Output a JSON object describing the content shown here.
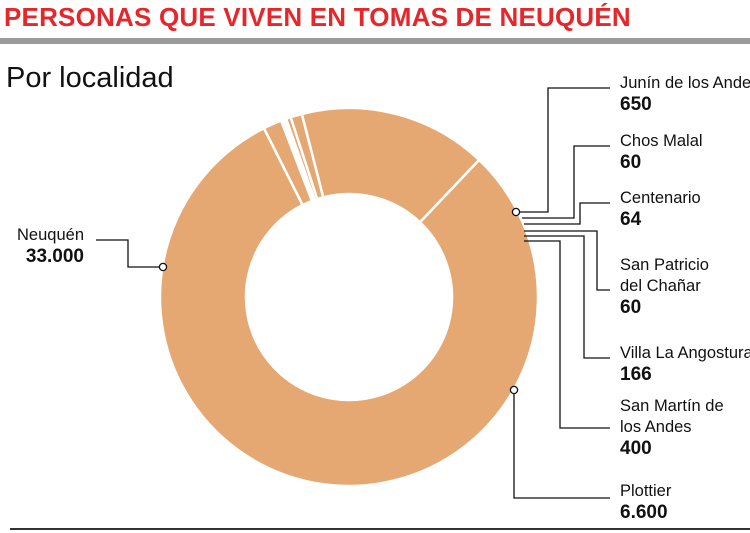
{
  "header": {
    "title": "PERSONAS QUE VIVEN EN TOMAS DE NEUQUÉN"
  },
  "subtitle": "Por localidad",
  "colors": {
    "title": "#e5262a",
    "rule_top": "#9b9b9b",
    "rule_bottom": "#333333",
    "slice": "#e5a872",
    "slice_border": "#ffffff",
    "leader": "#111111"
  },
  "chart_data": {
    "type": "pie",
    "donut": true,
    "title": "PERSONAS QUE VIVEN EN TOMAS DE NEUQUÉN",
    "subtitle": "Por localidad",
    "categories": [
      "Neuquén",
      "Junín de los Andes",
      "Chos Malal",
      "Centenario",
      "San Patricio del Chañar",
      "Villa La Angostura",
      "San Martín de los Andes",
      "Plottier"
    ],
    "values": [
      33000,
      650,
      60,
      64,
      60,
      166,
      400,
      6600
    ],
    "value_labels": [
      "33.000",
      "650",
      "60",
      "64",
      "60",
      "166",
      "400",
      "6.600"
    ],
    "label_lines": [
      [
        "Neuquén"
      ],
      [
        "Junín de los Andes"
      ],
      [
        "Chos Malal"
      ],
      [
        "Centenario"
      ],
      [
        "San Patricio",
        "del Chañar"
      ],
      [
        "Villa La Angostura"
      ],
      [
        "San Martín de",
        "los Andes"
      ],
      [
        "Plottier"
      ]
    ],
    "legend": "none"
  }
}
